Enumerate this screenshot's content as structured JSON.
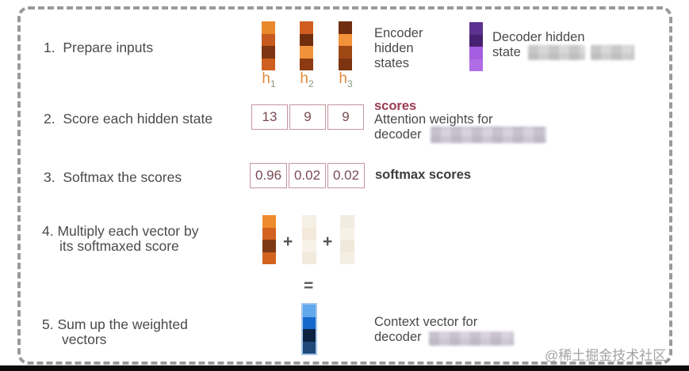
{
  "steps": {
    "s1": "1.  Prepare inputs",
    "s2": "2.  Score each hidden state",
    "s3": "3.  Softmax the scores",
    "s4_line1": "4. Multiply each vector by",
    "s4_line2": "its softmaxed score",
    "s5_line1": "5. Sum up the weighted",
    "s5_line2": "vectors"
  },
  "encoder": {
    "caption_line1": "Encoder",
    "caption_line2": "hidden",
    "caption_line3": "states",
    "labels": [
      {
        "base": "h",
        "sub": "1"
      },
      {
        "base": "h",
        "sub": "2"
      },
      {
        "base": "h",
        "sub": "3"
      }
    ],
    "bars": [
      {
        "cells": [
          "#e9892c",
          "#c75a1f",
          "#7e3511",
          "#cd5f20"
        ]
      },
      {
        "cells": [
          "#d15e20",
          "#702e0f",
          "#f0923a",
          "#8b3a12"
        ]
      },
      {
        "cells": [
          "#6f2d0f",
          "#f29239",
          "#a04716",
          "#7c330f"
        ]
      }
    ]
  },
  "decoder": {
    "caption_line1": "Decoder hidden",
    "caption_line2": "state",
    "bar": {
      "cells": [
        "#5d3190",
        "#482071",
        "#a55ee0",
        "#b06ee6"
      ]
    }
  },
  "scores": {
    "title": "scores",
    "caption_line1": "Attention weights for",
    "caption_line2": "decoder",
    "values": [
      "13",
      "9",
      "9"
    ]
  },
  "softmax": {
    "values": [
      "0.96",
      "0.02",
      "0.02"
    ],
    "caption": "softmax scores"
  },
  "multiply": {
    "plus": "+",
    "bars": [
      {
        "cells": [
          "#ee8c2d",
          "#d2611f",
          "#7e3914",
          "#d2631e"
        ]
      },
      {
        "cells": [
          "#f6efe5",
          "#f2e9db",
          "#f7f1e7",
          "#f1e9dc"
        ]
      },
      {
        "cells": [
          "#f2ebe0",
          "#f6f0e5",
          "#f0e8da",
          "#f4eee3"
        ]
      }
    ]
  },
  "sum": {
    "equals": "=",
    "context_bar": {
      "cells": [
        "#5fa8ec",
        "#1668cc",
        "#0b2240",
        "#20497a"
      ]
    },
    "caption_line1": "Context vector for",
    "caption_line2": "decoder"
  },
  "watermark": "@稀土掘金技术社区",
  "colors": {
    "body_text": "#4a4a4a",
    "score_border": "#c6959e",
    "score_text": "#7b4a54",
    "scores_title": "#9b3a50",
    "h_label": "#e2893a",
    "h_subscript": "#87977c",
    "dashed_border": "#9a9a9a",
    "watermark": "#a3a3a3"
  }
}
